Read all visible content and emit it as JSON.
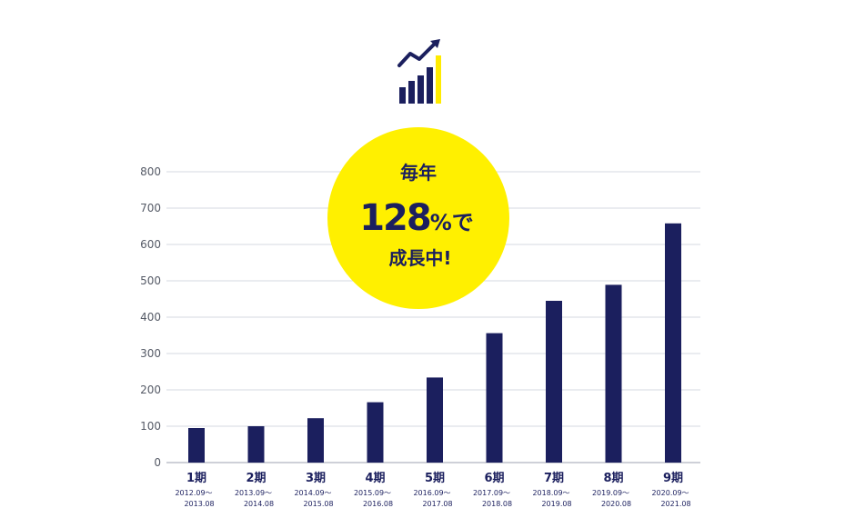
{
  "colors": {
    "bar": "#1b1f5e",
    "badge": "#fff000",
    "grid": "#c9ccd6",
    "axis": "#b0b4c0",
    "icon_dark": "#1b1f5e",
    "icon_accent": "#ffeb00"
  },
  "icon": "growth-chart-icon",
  "badge": {
    "line1": "毎年",
    "number": "128",
    "suffix": "%で",
    "line3": "成長中!"
  },
  "chart_data": {
    "type": "bar",
    "categories": [
      "1期",
      "2期",
      "3期",
      "4期",
      "5期",
      "6期",
      "7期",
      "8期",
      "9期"
    ],
    "periods": [
      [
        "2012.09～",
        "2013.08"
      ],
      [
        "2013.09～",
        "2014.08"
      ],
      [
        "2014.09～",
        "2015.08"
      ],
      [
        "2015.09～",
        "2016.08"
      ],
      [
        "2016.09～",
        "2017.08"
      ],
      [
        "2017.09～",
        "2018.08"
      ],
      [
        "2018.09～",
        "2019.08"
      ],
      [
        "2019.09～",
        "2020.08"
      ],
      [
        "2020.09～",
        "2021.08"
      ]
    ],
    "values": [
      95,
      100,
      122,
      166,
      234,
      356,
      445,
      489,
      658
    ],
    "ylim": [
      0,
      800
    ],
    "yticks": [
      0,
      100,
      200,
      300,
      400,
      500,
      600,
      700,
      800
    ],
    "grid": true
  }
}
